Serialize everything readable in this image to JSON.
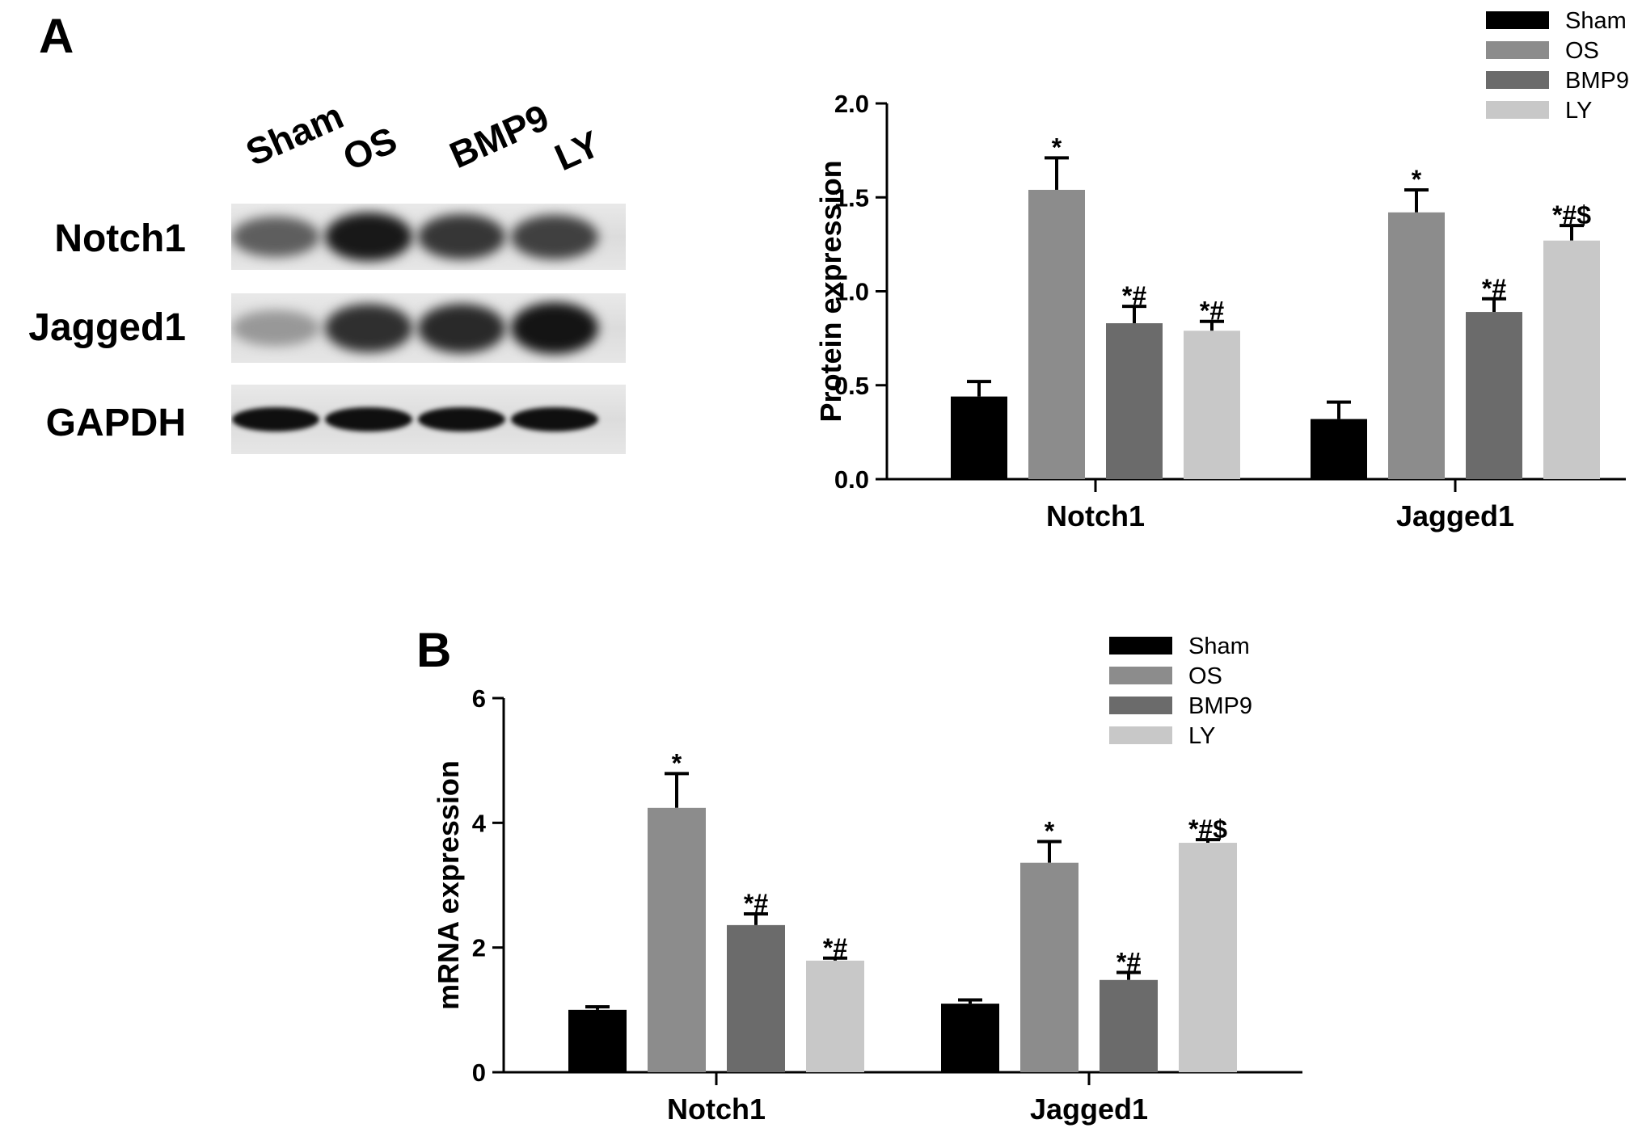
{
  "panels": {
    "A": "A",
    "B": "B"
  },
  "blot": {
    "lanes": [
      "Sham",
      "OS",
      "BMP9",
      "LY"
    ],
    "rows": [
      {
        "label": "Notch1",
        "intensity": [
          0.55,
          0.95,
          0.78,
          0.72
        ]
      },
      {
        "label": "Jagged1",
        "intensity": [
          0.22,
          0.82,
          0.85,
          0.97
        ]
      },
      {
        "label": "GAPDH",
        "intensity": [
          1.0,
          1.0,
          1.0,
          1.0
        ]
      }
    ]
  },
  "chart_data": [
    {
      "type": "bar",
      "categories": [
        "Notch1",
        "Jagged1"
      ],
      "ylabel": "Protein expression",
      "xlabel": "",
      "ylim": [
        0,
        2.0
      ],
      "yticks": [
        "0.0",
        "0.5",
        "1.0",
        "1.5",
        "2.0"
      ],
      "legend_position": "top-right",
      "series": [
        {
          "name": "Sham",
          "color": "#000000",
          "values": [
            0.44,
            0.32
          ],
          "errors": [
            0.08,
            0.09
          ],
          "annotations": [
            "",
            ""
          ]
        },
        {
          "name": "OS",
          "color": "#8c8c8c",
          "values": [
            1.54,
            1.42
          ],
          "errors": [
            0.17,
            0.12
          ],
          "annotations": [
            "*",
            "*"
          ]
        },
        {
          "name": "BMP9",
          "color": "#6b6b6b",
          "values": [
            0.83,
            0.89
          ],
          "errors": [
            0.09,
            0.07
          ],
          "annotations": [
            "*#",
            "*#"
          ]
        },
        {
          "name": "LY",
          "color": "#c8c8c8",
          "values": [
            0.79,
            1.27
          ],
          "errors": [
            0.05,
            0.08
          ],
          "annotations": [
            "*#",
            "*#$"
          ]
        }
      ]
    },
    {
      "type": "bar",
      "categories": [
        "Notch1",
        "Jagged1"
      ],
      "ylabel": "mRNA expression",
      "xlabel": "",
      "ylim": [
        0,
        6
      ],
      "yticks": [
        "0",
        "2",
        "4",
        "6"
      ],
      "legend_position": "top-right",
      "series": [
        {
          "name": "Sham",
          "color": "#000000",
          "values": [
            1.0,
            1.1
          ],
          "errors": [
            0.05,
            0.06
          ],
          "annotations": [
            "",
            ""
          ]
        },
        {
          "name": "OS",
          "color": "#8c8c8c",
          "values": [
            4.24,
            3.36
          ],
          "errors": [
            0.55,
            0.34
          ],
          "annotations": [
            "*",
            "*"
          ]
        },
        {
          "name": "BMP9",
          "color": "#6b6b6b",
          "values": [
            2.36,
            1.48
          ],
          "errors": [
            0.18,
            0.12
          ],
          "annotations": [
            "*#",
            "*#"
          ]
        },
        {
          "name": "LY",
          "color": "#c8c8c8",
          "values": [
            1.79,
            3.68
          ],
          "errors": [
            0.04,
            0.05
          ],
          "annotations": [
            "*#",
            "*#$"
          ]
        }
      ]
    }
  ]
}
